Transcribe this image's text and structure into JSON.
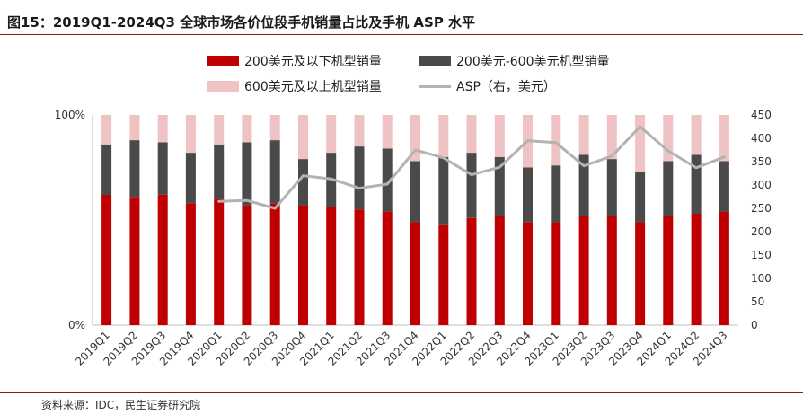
{
  "title": "图15：2019Q1-2024Q3 全球市场各价位段手机销量占比及手机 ASP 水平",
  "source": "资料来源：IDC，民生证券研究院",
  "colors": {
    "low": "#c00000",
    "mid": "#4a4a4a",
    "high": "#efc3c3",
    "asp": "#b3b3b3",
    "rule": "#8c1a1a"
  },
  "legend": {
    "low": "200美元及以下机型销量",
    "mid": "200美元-600美元机型销量",
    "high": "600美元及以上机型销量",
    "asp": "ASP（右，美元）"
  },
  "chart_data": {
    "type": "bar",
    "stacked": true,
    "categories": [
      "2019Q1",
      "2019Q2",
      "2019Q3",
      "2019Q4",
      "2020Q1",
      "2020Q2",
      "2020Q3",
      "2020Q4",
      "2021Q1",
      "2021Q2",
      "2021Q3",
      "2021Q4",
      "2022Q1",
      "2022Q2",
      "2022Q3",
      "2022Q4",
      "2023Q1",
      "2023Q2",
      "2023Q3",
      "2023Q4",
      "2024Q1",
      "2024Q2",
      "2024Q3"
    ],
    "series": [
      {
        "name": "200美元及以下机型销量",
        "values": [
          62,
          61,
          62,
          58,
          60,
          57,
          58,
          57,
          56,
          55,
          54,
          49,
          48,
          51,
          52,
          49,
          49,
          52,
          52,
          49,
          52,
          53,
          54
        ]
      },
      {
        "name": "200美元-600美元机型销量",
        "values": [
          24,
          27,
          25,
          24,
          26,
          30,
          30,
          22,
          26,
          30,
          30,
          29,
          32,
          31,
          28,
          26,
          27,
          29,
          27,
          24,
          26,
          28,
          24
        ]
      },
      {
        "name": "600美元及以上机型销量",
        "values": [
          14,
          12,
          13,
          18,
          14,
          13,
          12,
          21,
          18,
          15,
          16,
          22,
          20,
          18,
          20,
          25,
          24,
          19,
          21,
          27,
          22,
          19,
          22
        ]
      },
      {
        "name": "ASP（右，美元）",
        "type": "line",
        "axis": "right",
        "values": [
          null,
          null,
          null,
          null,
          265,
          267,
          250,
          320,
          313,
          293,
          302,
          375,
          358,
          322,
          338,
          395,
          391,
          341,
          362,
          425,
          373,
          337,
          360
        ]
      }
    ],
    "y_left": {
      "ticks": [
        "0%",
        "100%"
      ],
      "ylim": [
        0,
        100
      ]
    },
    "y_right": {
      "ticks": [
        0,
        50,
        100,
        150,
        200,
        250,
        300,
        350,
        400,
        450
      ],
      "ylim": [
        0,
        450
      ]
    },
    "legend_position": "top",
    "grid": false
  }
}
